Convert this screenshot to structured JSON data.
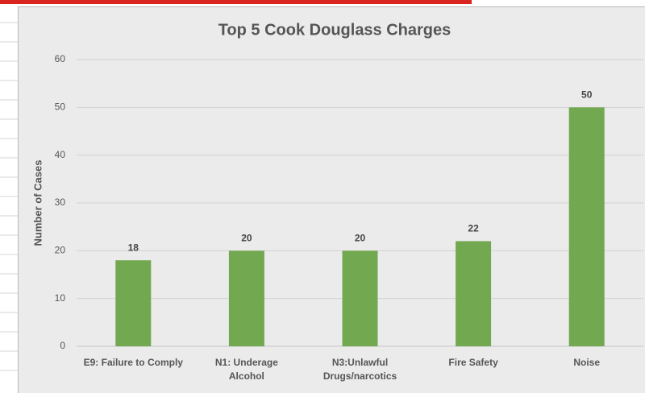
{
  "chart_data": {
    "type": "bar",
    "title": "Top 5 Cook Douglass Charges",
    "y_label": "Number of Cases",
    "categories": [
      "E9: Failure to Comply",
      "N1: Underage\nAlcohol",
      "N3:Unlawful\nDrugs/narcotics",
      "Fire Safety",
      "Noise"
    ],
    "values": [
      18,
      20,
      20,
      22,
      50
    ],
    "color": "#72a84f",
    "ylim": [
      0,
      60
    ],
    "yticks": [
      0,
      10,
      20,
      30,
      40,
      50,
      60
    ],
    "grid": true
  }
}
